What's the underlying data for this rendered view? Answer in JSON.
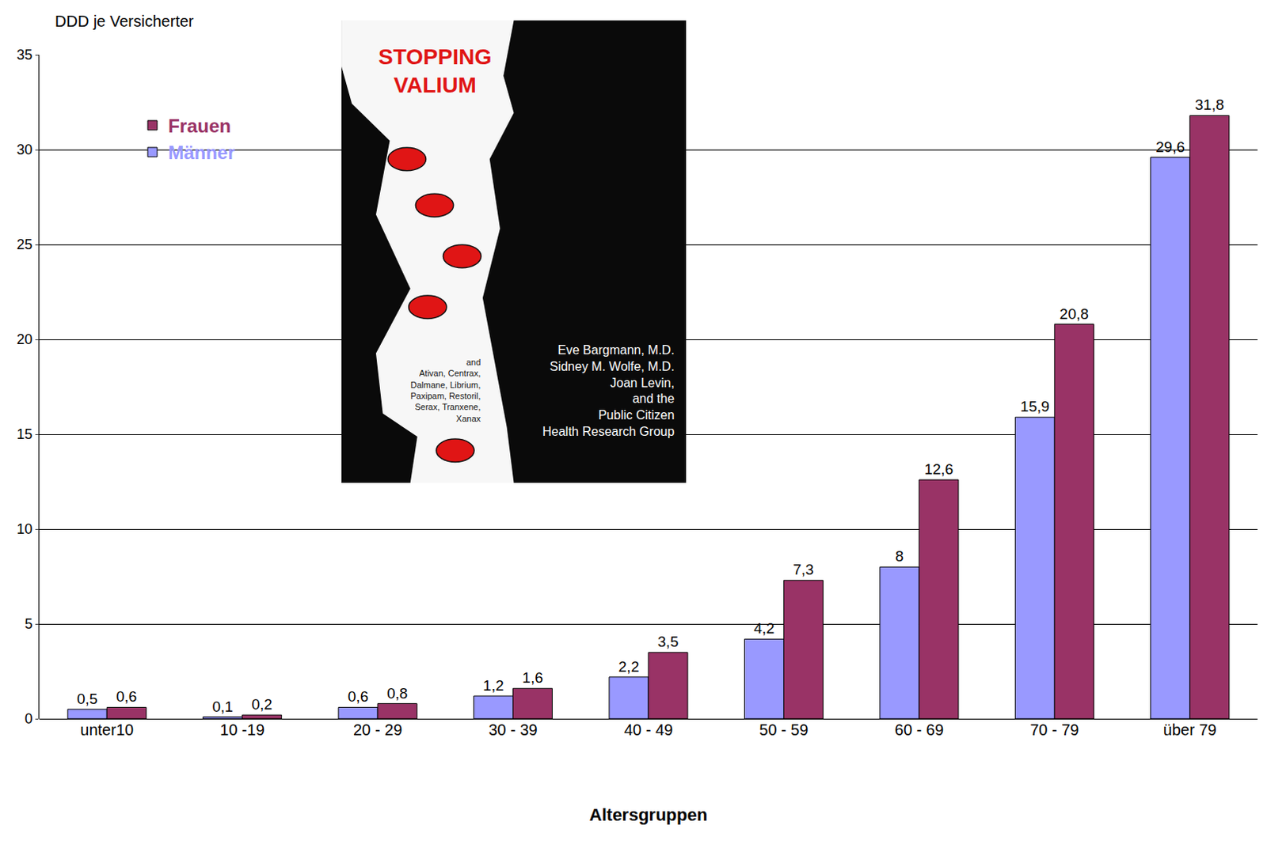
{
  "chart_data": {
    "type": "bar",
    "y_label": "DDD je Versicherter",
    "x_label": "Altersgruppen",
    "categories": [
      "unter10",
      "10 -19",
      "20 - 29",
      "30 - 39",
      "40 - 49",
      "50 - 59",
      "60 - 69",
      "70 - 79",
      "über 79"
    ],
    "series": [
      {
        "name": "Männer",
        "color": "#9999ff",
        "values": [
          0.5,
          0.1,
          0.6,
          1.2,
          2.2,
          4.2,
          8,
          15.9,
          29.6
        ],
        "value_labels": [
          "0,5",
          "0,1",
          "0,6",
          "1,2",
          "2,2",
          "4,2",
          "8",
          "15,9",
          "29,6"
        ]
      },
      {
        "name": "Frauen",
        "color": "#993366",
        "values": [
          0.6,
          0.2,
          0.8,
          1.6,
          3.5,
          7.3,
          12.6,
          20.8,
          31.8
        ],
        "value_labels": [
          "0,6",
          "0,2",
          "0,8",
          "1,6",
          "3,5",
          "7,3",
          "12,6",
          "20,8",
          "31,8"
        ]
      }
    ],
    "ylim": [
      0,
      35
    ],
    "yticks": [
      0,
      5,
      10,
      15,
      20,
      25,
      30,
      35
    ],
    "grid": true,
    "data_labels": true,
    "legend": "top left",
    "annotations": [
      [
        "STOPPING",
        "VALIUM"
      ],
      [
        "and",
        "Ativan, Centrax,",
        "Dalmane, Librium,",
        "Paxipam, Restoril,",
        "Serax, Tranxene,",
        "Xanax"
      ],
      [
        "Eve Bargmann, M.D.",
        "Sidney M. Wolfe, M.D.",
        "Joan Levin,",
        "and the",
        "Public Citizen",
        "Health Research Group"
      ]
    ]
  }
}
